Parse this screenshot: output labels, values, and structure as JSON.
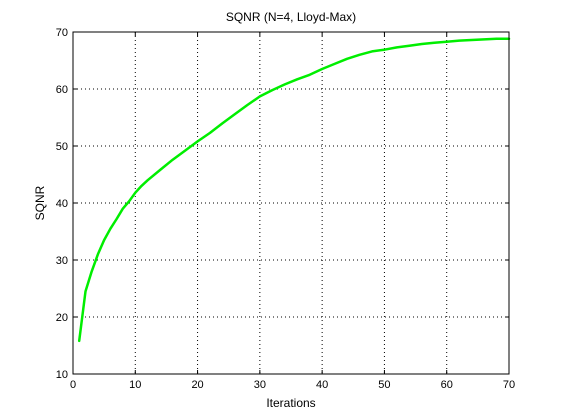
{
  "chart_data": {
    "type": "line",
    "title": "SQNR (N=4, Lloyd-Max)",
    "xlabel": "Iterations",
    "ylabel": "SQNR",
    "xlim": [
      0,
      70
    ],
    "ylim": [
      10,
      70
    ],
    "xticks": [
      0,
      10,
      20,
      30,
      40,
      50,
      60,
      70
    ],
    "yticks": [
      10,
      20,
      30,
      40,
      50,
      60,
      70
    ],
    "grid": true,
    "series": [
      {
        "name": "SQNR",
        "color": "#00ee00",
        "x": [
          1,
          2,
          3,
          4,
          5,
          6,
          7,
          8,
          9,
          10,
          11,
          12,
          14,
          16,
          18,
          20,
          22,
          24,
          26,
          28,
          30,
          32,
          34,
          36,
          38,
          40,
          42,
          44,
          46,
          48,
          50,
          52,
          54,
          56,
          58,
          60,
          62,
          64,
          66,
          68,
          70
        ],
        "values": [
          15.8,
          24.5,
          28.0,
          31.0,
          33.5,
          35.5,
          37.2,
          39.0,
          40.3,
          41.8,
          43.0,
          44.0,
          45.8,
          47.6,
          49.2,
          50.8,
          52.3,
          54.0,
          55.6,
          57.2,
          58.7,
          59.8,
          60.8,
          61.7,
          62.5,
          63.5,
          64.4,
          65.3,
          66.0,
          66.6,
          66.9,
          67.3,
          67.6,
          67.9,
          68.1,
          68.3,
          68.5,
          68.6,
          68.7,
          68.8,
          68.8
        ]
      }
    ]
  }
}
